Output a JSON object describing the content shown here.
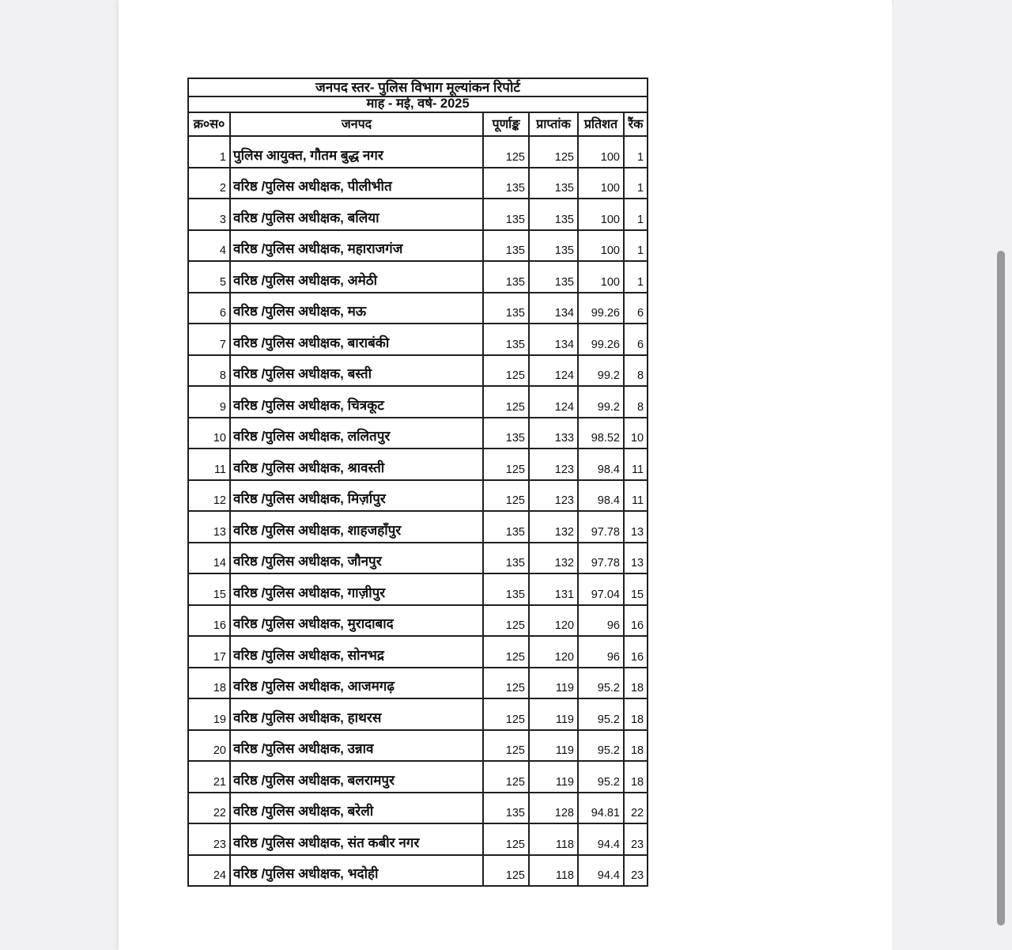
{
  "document": {
    "title": "जनपद स्तर- पुलिस विभाग मूल्यांकन रिपोर्ट",
    "subtitle": "माह - मई, वर्ष- 2025",
    "columns": [
      "क्र०स०",
      "जनपद",
      "पूर्णाङ्क",
      "प्राप्तांक",
      "प्रतिशत",
      "रैंक"
    ],
    "rows": [
      {
        "sn": 1,
        "district": "पुलिस आयुक्त, गौतम बुद्ध नगर",
        "max": 125,
        "obtained": 125,
        "percent": 100,
        "rank": 1
      },
      {
        "sn": 2,
        "district": "वरिष्ठ /पुलिस अधीक्षक, पीलीभीत",
        "max": 135,
        "obtained": 135,
        "percent": 100,
        "rank": 1
      },
      {
        "sn": 3,
        "district": "वरिष्ठ /पुलिस अधीक्षक, बलिया",
        "max": 135,
        "obtained": 135,
        "percent": 100,
        "rank": 1
      },
      {
        "sn": 4,
        "district": "वरिष्ठ /पुलिस अधीक्षक, महाराजगंज",
        "max": 135,
        "obtained": 135,
        "percent": 100,
        "rank": 1
      },
      {
        "sn": 5,
        "district": "वरिष्ठ /पुलिस अधीक्षक, अमेठी",
        "max": 135,
        "obtained": 135,
        "percent": 100,
        "rank": 1
      },
      {
        "sn": 6,
        "district": "वरिष्ठ /पुलिस अधीक्षक, मऊ",
        "max": 135,
        "obtained": 134,
        "percent": 99.26,
        "rank": 6
      },
      {
        "sn": 7,
        "district": "वरिष्ठ /पुलिस अधीक्षक, बाराबंकी",
        "max": 135,
        "obtained": 134,
        "percent": 99.26,
        "rank": 6
      },
      {
        "sn": 8,
        "district": "वरिष्ठ /पुलिस अधीक्षक, बस्ती",
        "max": 125,
        "obtained": 124,
        "percent": 99.2,
        "rank": 8
      },
      {
        "sn": 9,
        "district": "वरिष्ठ /पुलिस अधीक्षक, चित्रकूट",
        "max": 125,
        "obtained": 124,
        "percent": 99.2,
        "rank": 8
      },
      {
        "sn": 10,
        "district": "वरिष्ठ /पुलिस अधीक्षक, ललितपुर",
        "max": 135,
        "obtained": 133,
        "percent": 98.52,
        "rank": 10
      },
      {
        "sn": 11,
        "district": "वरिष्ठ /पुलिस अधीक्षक, श्रावस्ती",
        "max": 125,
        "obtained": 123,
        "percent": 98.4,
        "rank": 11
      },
      {
        "sn": 12,
        "district": "वरिष्ठ /पुलिस अधीक्षक, मिर्ज़ापुर",
        "max": 125,
        "obtained": 123,
        "percent": 98.4,
        "rank": 11
      },
      {
        "sn": 13,
        "district": "वरिष्ठ /पुलिस अधीक्षक, शाहजहाँपुर",
        "max": 135,
        "obtained": 132,
        "percent": 97.78,
        "rank": 13
      },
      {
        "sn": 14,
        "district": "वरिष्ठ /पुलिस अधीक्षक, जौनपुर",
        "max": 135,
        "obtained": 132,
        "percent": 97.78,
        "rank": 13
      },
      {
        "sn": 15,
        "district": "वरिष्ठ /पुलिस अधीक्षक, गाज़ीपुर",
        "max": 135,
        "obtained": 131,
        "percent": 97.04,
        "rank": 15
      },
      {
        "sn": 16,
        "district": "वरिष्ठ /पुलिस अधीक्षक, मुरादाबाद",
        "max": 125,
        "obtained": 120,
        "percent": 96,
        "rank": 16
      },
      {
        "sn": 17,
        "district": "वरिष्ठ /पुलिस अधीक्षक, सोनभद्र",
        "max": 125,
        "obtained": 120,
        "percent": 96,
        "rank": 16
      },
      {
        "sn": 18,
        "district": "वरिष्ठ /पुलिस अधीक्षक, आजमगढ़",
        "max": 125,
        "obtained": 119,
        "percent": 95.2,
        "rank": 18
      },
      {
        "sn": 19,
        "district": "वरिष्ठ /पुलिस अधीक्षक, हाथरस",
        "max": 125,
        "obtained": 119,
        "percent": 95.2,
        "rank": 18
      },
      {
        "sn": 20,
        "district": "वरिष्ठ /पुलिस अधीक्षक, उन्नाव",
        "max": 125,
        "obtained": 119,
        "percent": 95.2,
        "rank": 18
      },
      {
        "sn": 21,
        "district": "वरिष्ठ /पुलिस अधीक्षक, बलरामपुर",
        "max": 125,
        "obtained": 119,
        "percent": 95.2,
        "rank": 18
      },
      {
        "sn": 22,
        "district": "वरिष्ठ /पुलिस अधीक्षक, बरेली",
        "max": 135,
        "obtained": 128,
        "percent": 94.81,
        "rank": 22
      },
      {
        "sn": 23,
        "district": "वरिष्ठ /पुलिस अधीक्षक, संत कबीर नगर",
        "max": 125,
        "obtained": 118,
        "percent": 94.4,
        "rank": 23
      },
      {
        "sn": 24,
        "district": "वरिष्ठ /पुलिस अधीक्षक, भदोही",
        "max": 125,
        "obtained": 118,
        "percent": 94.4,
        "rank": 23
      }
    ]
  },
  "colors": {
    "canvas_background": "#f1f1f4",
    "page_background": "#ffffff",
    "table_border": "#1f1f1f",
    "scrollbar_thumb": "#97979c"
  }
}
